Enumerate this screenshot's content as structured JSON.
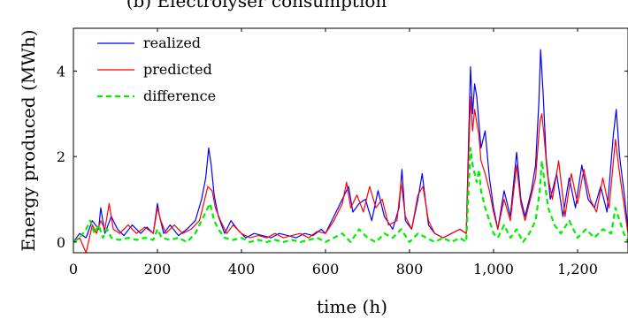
{
  "chart_data": {
    "type": "line",
    "title": "(b) Electrolyser consumption",
    "xlabel": "time (h)",
    "ylabel": "Energy produced (MWh)",
    "xlim": [
      0,
      1320
    ],
    "ylim": [
      -0.25,
      5.0
    ],
    "xticks": [
      0,
      200,
      400,
      600,
      800,
      1000,
      1200
    ],
    "xtick_labels": [
      "0",
      "200",
      "400",
      "600",
      "800",
      "1,000",
      "1,200"
    ],
    "yticks": [
      0,
      2,
      4
    ],
    "ytick_labels": [
      "0",
      "2",
      "4"
    ],
    "grid": false,
    "legend_position": "top-left",
    "series": [
      {
        "name": "realized",
        "color": "#0000ff",
        "dash": "solid",
        "x": [
          0,
          15,
          30,
          45,
          60,
          65,
          75,
          90,
          105,
          120,
          140,
          160,
          175,
          190,
          200,
          205,
          215,
          230,
          250,
          270,
          290,
          305,
          315,
          322,
          328,
          335,
          345,
          360,
          375,
          390,
          410,
          430,
          450,
          470,
          490,
          510,
          530,
          550,
          570,
          590,
          600,
          620,
          640,
          655,
          665,
          680,
          695,
          710,
          725,
          740,
          760,
          775,
          782,
          790,
          805,
          820,
          830,
          845,
          860,
          880,
          900,
          920,
          935,
          945,
          950,
          955,
          960,
          965,
          970,
          980,
          990,
          1000,
          1010,
          1025,
          1040,
          1055,
          1065,
          1075,
          1090,
          1100,
          1108,
          1112,
          1118,
          1125,
          1135,
          1150,
          1165,
          1180,
          1195,
          1210,
          1225,
          1240,
          1255,
          1270,
          1285,
          1292,
          1300,
          1310,
          1320
        ],
        "y": [
          0,
          0.2,
          0.1,
          0.5,
          0.3,
          0.8,
          0.2,
          0.6,
          0.3,
          0.15,
          0.4,
          0.2,
          0.35,
          0.2,
          0.9,
          0.6,
          0.2,
          0.4,
          0.15,
          0.3,
          0.5,
          1.0,
          1.5,
          2.2,
          1.8,
          1.1,
          0.6,
          0.2,
          0.5,
          0.3,
          0.1,
          0.2,
          0.15,
          0.1,
          0.2,
          0.15,
          0.1,
          0.2,
          0.15,
          0.3,
          0.2,
          0.6,
          1.0,
          1.3,
          0.7,
          0.9,
          1.0,
          0.5,
          1.2,
          0.6,
          0.3,
          0.8,
          1.7,
          0.5,
          0.3,
          1.0,
          1.6,
          0.4,
          0.2,
          0.1,
          0.2,
          0.3,
          0.2,
          4.1,
          3.0,
          3.7,
          3.4,
          2.8,
          2.2,
          2.6,
          1.5,
          0.8,
          0.3,
          1.2,
          0.6,
          2.1,
          1.0,
          0.6,
          1.2,
          1.8,
          3.3,
          4.5,
          3.5,
          2.0,
          1.0,
          1.6,
          0.6,
          1.5,
          0.8,
          1.8,
          1.0,
          0.8,
          1.3,
          0.7,
          2.5,
          3.1,
          2.0,
          1.2,
          0.3
        ]
      },
      {
        "name": "predicted",
        "color": "#ff0000",
        "dash": "solid",
        "x": [
          0,
          15,
          30,
          45,
          55,
          65,
          75,
          85,
          95,
          110,
          130,
          150,
          170,
          190,
          200,
          208,
          220,
          240,
          260,
          280,
          300,
          310,
          320,
          330,
          338,
          350,
          365,
          380,
          400,
          420,
          440,
          460,
          480,
          500,
          520,
          540,
          560,
          580,
          600,
          620,
          640,
          650,
          660,
          675,
          690,
          705,
          720,
          735,
          750,
          770,
          780,
          790,
          805,
          820,
          832,
          845,
          860,
          880,
          900,
          920,
          935,
          945,
          950,
          955,
          960,
          965,
          970,
          980,
          990,
          1000,
          1010,
          1025,
          1040,
          1055,
          1065,
          1075,
          1090,
          1100,
          1110,
          1115,
          1120,
          1128,
          1140,
          1155,
          1170,
          1185,
          1200,
          1215,
          1230,
          1245,
          1260,
          1275,
          1290,
          1300,
          1310,
          1320
        ],
        "y": [
          0,
          0.1,
          -0.25,
          0.4,
          0.2,
          0.5,
          0.3,
          0.9,
          0.3,
          0.2,
          0.4,
          0.2,
          0.35,
          0.2,
          0.8,
          0.5,
          0.2,
          0.4,
          0.2,
          0.3,
          0.5,
          0.9,
          1.3,
          1.2,
          0.8,
          0.5,
          0.2,
          0.4,
          0.2,
          0.1,
          0.15,
          0.1,
          0.2,
          0.1,
          0.15,
          0.2,
          0.1,
          0.25,
          0.2,
          0.5,
          0.9,
          1.4,
          0.8,
          1.1,
          0.7,
          1.3,
          0.8,
          1.0,
          0.4,
          0.5,
          1.4,
          0.6,
          0.3,
          1.1,
          1.3,
          0.5,
          0.2,
          0.1,
          0.2,
          0.3,
          0.2,
          3.4,
          2.6,
          3.1,
          2.8,
          2.5,
          1.9,
          1.6,
          1.2,
          0.7,
          0.3,
          1.0,
          0.5,
          1.8,
          0.9,
          0.5,
          1.1,
          1.5,
          2.8,
          3.0,
          2.5,
          1.6,
          1.0,
          1.9,
          0.6,
          1.6,
          0.9,
          1.7,
          1.0,
          0.7,
          1.5,
          0.8,
          2.4,
          1.6,
          0.9,
          0.2
        ]
      },
      {
        "name": "difference",
        "color": "#00ee00",
        "dash": "dashed",
        "x": [
          0,
          15,
          30,
          40,
          50,
          60,
          70,
          80,
          90,
          110,
          130,
          150,
          170,
          190,
          200,
          210,
          230,
          250,
          270,
          290,
          305,
          315,
          325,
          335,
          345,
          360,
          380,
          400,
          420,
          440,
          460,
          480,
          500,
          520,
          540,
          560,
          580,
          600,
          620,
          640,
          660,
          680,
          700,
          720,
          740,
          760,
          780,
          800,
          820,
          840,
          860,
          880,
          900,
          920,
          935,
          945,
          950,
          955,
          960,
          965,
          970,
          980,
          990,
          1000,
          1010,
          1025,
          1040,
          1055,
          1070,
          1085,
          1100,
          1110,
          1115,
          1120,
          1130,
          1145,
          1160,
          1180,
          1200,
          1220,
          1240,
          1260,
          1280,
          1290,
          1300,
          1310,
          1320
        ],
        "y": [
          0,
          0.1,
          0.3,
          0.5,
          0.2,
          0.4,
          0.1,
          0.3,
          0.1,
          0.05,
          0.1,
          0.05,
          0.1,
          0.05,
          0.3,
          0.1,
          0.05,
          0.1,
          0.0,
          0.2,
          0.5,
          0.7,
          0.9,
          0.5,
          0.3,
          0.1,
          0.05,
          0.1,
          0.0,
          0.05,
          0.0,
          0.05,
          0.0,
          0.05,
          0.0,
          0.05,
          0.1,
          0.0,
          0.1,
          0.2,
          0.0,
          0.3,
          0.1,
          0.0,
          0.2,
          0.1,
          0.3,
          0.0,
          0.2,
          0.1,
          0.0,
          0.1,
          0.0,
          0.1,
          0.0,
          2.2,
          1.8,
          1.6,
          1.4,
          1.7,
          1.2,
          0.8,
          0.5,
          0.2,
          0.1,
          0.4,
          0.1,
          0.3,
          0.0,
          0.2,
          0.5,
          1.2,
          1.9,
          1.5,
          0.8,
          0.4,
          0.2,
          0.5,
          0.1,
          0.3,
          0.1,
          0.3,
          0.2,
          0.8,
          0.5,
          0.2,
          0.0
        ]
      }
    ]
  }
}
